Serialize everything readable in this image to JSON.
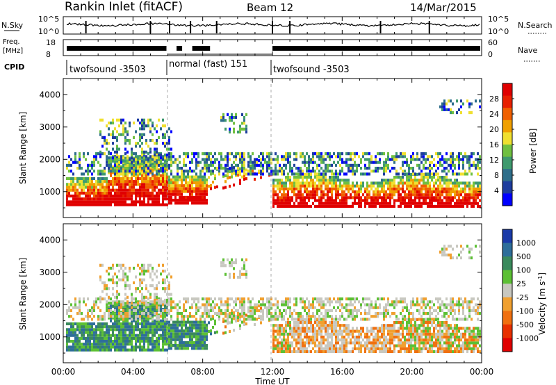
{
  "header": {
    "title": "Rankin Inlet (fitACF)",
    "beam": "Beam 12",
    "date": "14/Mar/2015"
  },
  "params": {
    "nsky_label": "N.Sky",
    "nsky_ticks": [
      "10^5",
      "10^0"
    ],
    "nsearch_label": "N.Search",
    "nsearch_ticks": [
      "10^5",
      "10^0"
    ],
    "freq_label": "Freq.",
    "freq_unit": "[MHz]",
    "freq_ticks": [
      "18",
      "8"
    ],
    "nave_label": "Nave",
    "nave_ticks": [
      "60",
      "0"
    ],
    "cpid_label": "CPID",
    "cpid_segments": [
      "twofsound -3503",
      "normal (fast) 151",
      "twofsound -3503"
    ]
  },
  "colors": {
    "power_scale": [
      "#0000ff",
      "#1e3d9e",
      "#2e6e8a",
      "#3f9a6e",
      "#70c040",
      "#f0e030",
      "#f0a000",
      "#f06000",
      "#e82000",
      "#e00000"
    ],
    "velocity_scale": [
      "#1a3aa8",
      "#2e6e9a",
      "#3a8a5c",
      "#5cc034",
      "#c8c8c0",
      "#f0a030",
      "#f07010",
      "#e83000",
      "#e00000"
    ]
  },
  "chart_data": [
    {
      "type": "heatmap",
      "name": "power-panel",
      "ylabel": "Slant Range [km]",
      "ylim": [
        200,
        4500
      ],
      "y_ticks": [
        "1000",
        "2000",
        "3000",
        "4000"
      ],
      "colorbar_label": "Power [dB]",
      "colorbar_ticks": [
        "4",
        "8",
        "12",
        "16",
        "20",
        "24",
        "28"
      ],
      "colorbar_range": [
        0,
        32
      ]
    },
    {
      "type": "heatmap",
      "name": "velocity-panel",
      "ylabel": "Slant Range [km]",
      "ylim": [
        200,
        4500
      ],
      "y_ticks": [
        "1000",
        "2000",
        "3000",
        "4000"
      ],
      "colorbar_label": "Velocity [m s-1]",
      "colorbar_ticks": [
        "1000",
        "500",
        "100",
        "25",
        "-25",
        "-100",
        "-500",
        "-1000"
      ]
    }
  ],
  "xaxis": {
    "label": "Time UT",
    "ticks": [
      "00:00",
      "04:00",
      "08:00",
      "12:00",
      "16:00",
      "20:00",
      "00:00"
    ]
  }
}
